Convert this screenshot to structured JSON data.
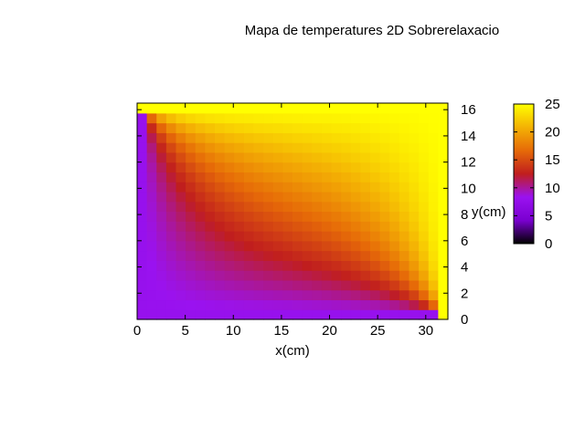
{
  "chart_data": {
    "type": "heatmap",
    "title": "Mapa de temperatures 2D Sobrerelaxacio",
    "xlabel": "x(cm)",
    "ylabel": "y(cm)",
    "xlim": [
      0,
      32.3
    ],
    "ylim": [
      0,
      16.5
    ],
    "x_ticks": [
      "0",
      "5",
      "10",
      "15",
      "20",
      "25",
      "30"
    ],
    "y_ticks": [
      "0",
      "2",
      "4",
      "6",
      "8",
      "10",
      "12",
      "14",
      "16"
    ],
    "colorbar": {
      "range": [
        0,
        25
      ],
      "ticks": [
        "0",
        "5",
        "10",
        "15",
        "20",
        "25"
      ],
      "palette": [
        "#000000",
        "#7a00d0",
        "#9a12f0",
        "#c01e1e",
        "#e66a08",
        "#f4b204",
        "#ffff00"
      ]
    },
    "grid": false,
    "field_description_points": {
      "boundary_top": 25,
      "boundary_right": 25,
      "boundary_left": 8,
      "boundary_bottom": 8,
      "interior_min": 8,
      "interior_max": 22
    }
  }
}
